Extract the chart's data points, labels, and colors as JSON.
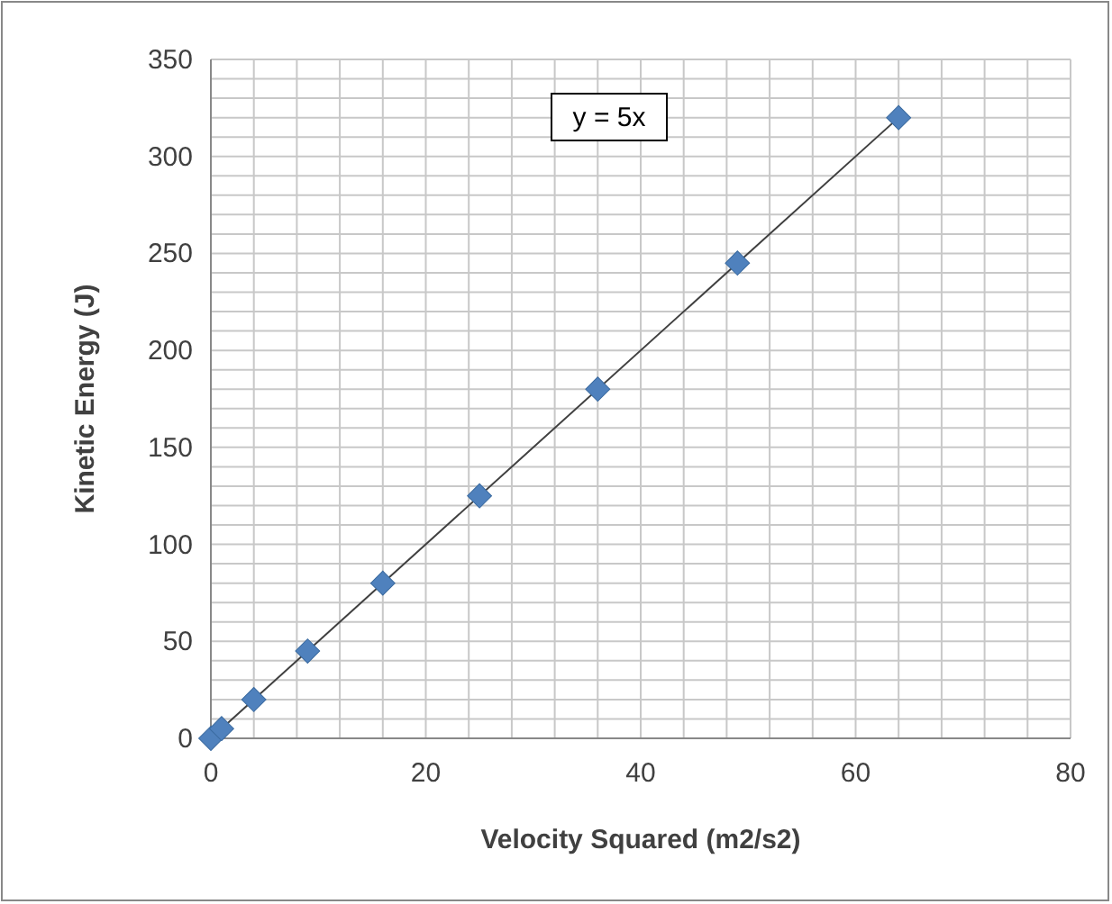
{
  "chart_data": {
    "type": "scatter",
    "xlabel": "Velocity Squared (m2/s2)",
    "ylabel": "Kinetic Energy (J)",
    "annotations": [
      "y = 5x"
    ],
    "xlim": [
      0,
      80
    ],
    "ylim": [
      0,
      350
    ],
    "xticks": [
      0,
      {
        "value": 4,
        "label": null
      },
      {
        "value": 8,
        "label": null
      },
      {
        "value": 12,
        "label": null
      },
      {
        "value": 16,
        "label": null
      },
      20,
      {
        "value": 24,
        "label": null
      },
      {
        "value": 28,
        "label": null
      },
      {
        "value": 32,
        "label": null
      },
      {
        "value": 36,
        "label": null
      },
      40,
      {
        "value": 44,
        "label": null
      },
      {
        "value": 48,
        "label": null
      },
      {
        "value": 52,
        "label": null
      },
      {
        "value": 56,
        "label": null
      },
      60,
      {
        "value": 64,
        "label": null
      },
      {
        "value": 68,
        "label": null
      },
      {
        "value": 72,
        "label": null
      },
      {
        "value": 76,
        "label": null
      },
      80
    ],
    "yticks": [
      0,
      {
        "value": 10,
        "label": null
      },
      {
        "value": 20,
        "label": null
      },
      {
        "value": 30,
        "label": null
      },
      {
        "value": 40,
        "label": null
      },
      50,
      {
        "value": 60,
        "label": null
      },
      {
        "value": 70,
        "label": null
      },
      {
        "value": 80,
        "label": null
      },
      {
        "value": 90,
        "label": null
      },
      100,
      {
        "value": 110,
        "label": null
      },
      {
        "value": 120,
        "label": null
      },
      {
        "value": 130,
        "label": null
      },
      {
        "value": 140,
        "label": null
      },
      150,
      {
        "value": 160,
        "label": null
      },
      {
        "value": 170,
        "label": null
      },
      {
        "value": 180,
        "label": null
      },
      {
        "value": 190,
        "label": null
      },
      200,
      {
        "value": 210,
        "label": null
      },
      {
        "value": 220,
        "label": null
      },
      {
        "value": 230,
        "label": null
      },
      {
        "value": 240,
        "label": null
      },
      250,
      {
        "value": 260,
        "label": null
      },
      {
        "value": 270,
        "label": null
      },
      {
        "value": 280,
        "label": null
      },
      {
        "value": 290,
        "label": null
      },
      300,
      {
        "value": 310,
        "label": null
      },
      {
        "value": 320,
        "label": null
      },
      {
        "value": 330,
        "label": null
      },
      {
        "value": 340,
        "label": null
      },
      350
    ],
    "grid": true,
    "series": [
      {
        "color": "#4f81bd",
        "marker": "diamond",
        "x": [
          0,
          1,
          4,
          9,
          16,
          25,
          36,
          49,
          64
        ],
        "values": [
          0,
          5,
          20,
          45,
          80,
          125,
          180,
          245,
          320
        ]
      },
      {
        "type": "line",
        "color": "#404040",
        "marker": "none",
        "line_style": "solid",
        "x": [
          0,
          64
        ],
        "values": [
          0,
          320
        ]
      }
    ]
  }
}
